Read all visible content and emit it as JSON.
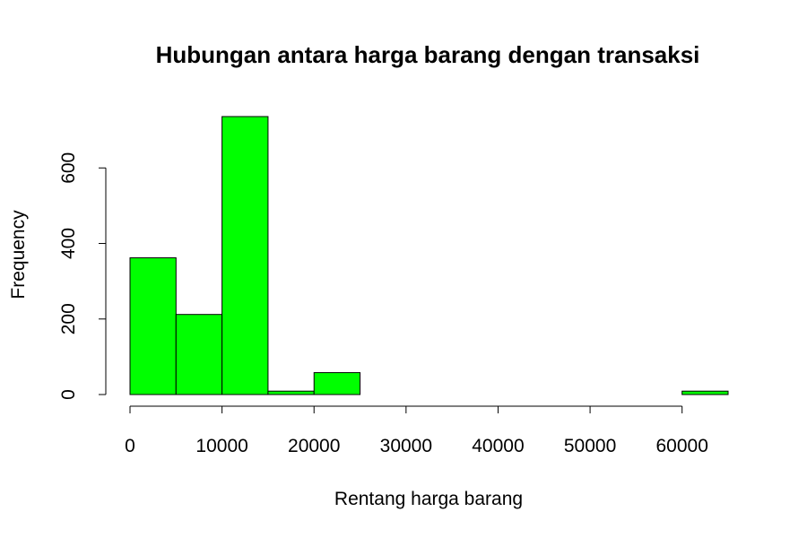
{
  "chart_data": {
    "type": "bar",
    "title": "Hubungan antara harga barang dengan transaksi",
    "xlabel": "Rentang harga barang",
    "ylabel": "Frequency",
    "bins": [
      {
        "from": 0,
        "to": 5000,
        "count": 362
      },
      {
        "from": 5000,
        "to": 10000,
        "count": 212
      },
      {
        "from": 10000,
        "to": 15000,
        "count": 736
      },
      {
        "from": 15000,
        "to": 20000,
        "count": 9
      },
      {
        "from": 20000,
        "to": 25000,
        "count": 58
      },
      {
        "from": 25000,
        "to": 30000,
        "count": 0
      },
      {
        "from": 30000,
        "to": 35000,
        "count": 0
      },
      {
        "from": 35000,
        "to": 40000,
        "count": 0
      },
      {
        "from": 40000,
        "to": 45000,
        "count": 0
      },
      {
        "from": 45000,
        "to": 50000,
        "count": 0
      },
      {
        "from": 50000,
        "to": 55000,
        "count": 0
      },
      {
        "from": 55000,
        "to": 60000,
        "count": 0
      },
      {
        "from": 60000,
        "to": 65000,
        "count": 9
      }
    ],
    "x_ticks": [
      "0",
      "10000",
      "20000",
      "30000",
      "40000",
      "50000",
      "60000"
    ],
    "y_ticks": [
      "0",
      "200",
      "400",
      "600"
    ],
    "xlim": [
      0,
      65000
    ],
    "ylim": [
      0,
      736
    ],
    "bar_color": "#00ff00",
    "grid": false
  }
}
